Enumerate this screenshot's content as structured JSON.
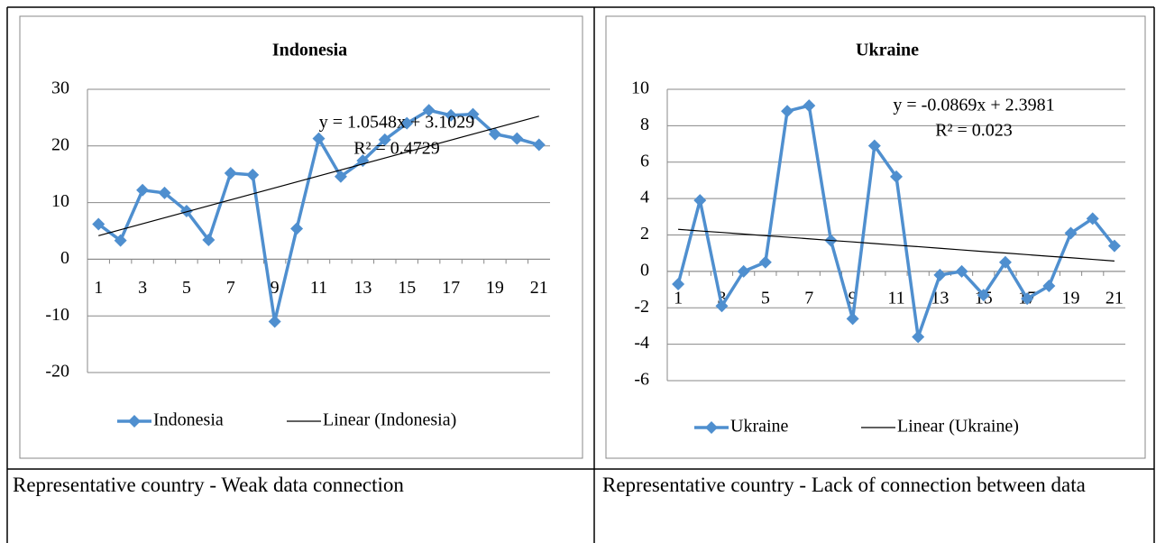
{
  "chart_data": [
    {
      "type": "line",
      "title": "Indonesia",
      "categories": [
        1,
        null,
        3,
        null,
        5,
        null,
        7,
        null,
        9,
        null,
        11,
        null,
        13,
        null,
        15,
        null,
        17,
        null,
        19,
        null,
        21
      ],
      "series": [
        {
          "name": "Indonesia",
          "color": "#4f8fcf",
          "marker": "diamond",
          "values": [
            6.2,
            3.3,
            12.2,
            11.7,
            8.5,
            3.4,
            15.2,
            14.9,
            -11,
            5.4,
            21.3,
            14.6,
            17.4,
            21.1,
            24,
            26.3,
            25.4,
            25.6,
            22.1,
            21.3,
            20.2
          ]
        },
        {
          "name": "Linear (Indonesia)",
          "color": "#000000",
          "marker": "none",
          "values": [
            4.16,
            5.21,
            6.27,
            7.32,
            8.38,
            9.43,
            10.49,
            11.54,
            12.6,
            13.65,
            14.71,
            15.76,
            16.82,
            17.87,
            18.92,
            19.98,
            21.03,
            22.09,
            23.14,
            24.2,
            25.25
          ]
        }
      ],
      "annotations": [
        "y = 1.0548x + 3.1029",
        "R² = 0.4729"
      ],
      "ylim": [
        -20,
        30
      ],
      "yticks": [
        -20,
        -10,
        0,
        10,
        20,
        30
      ],
      "grid": true,
      "legend": "bottom"
    },
    {
      "type": "line",
      "title": "Ukraine",
      "categories": [
        1,
        null,
        3,
        null,
        5,
        null,
        7,
        null,
        9,
        null,
        11,
        null,
        13,
        null,
        15,
        null,
        17,
        null,
        19,
        null,
        21
      ],
      "series": [
        {
          "name": "Ukraine",
          "color": "#4f8fcf",
          "marker": "diamond",
          "values": [
            -0.7,
            3.9,
            -1.9,
            0,
            0.5,
            8.8,
            9.1,
            1.7,
            -2.6,
            6.9,
            5.2,
            -3.6,
            -0.2,
            0,
            -1.3,
            0.5,
            -1.5,
            -0.8,
            2.1,
            2.9,
            1.4
          ]
        },
        {
          "name": "Linear (Ukraine)",
          "color": "#000000",
          "marker": "none",
          "values": [
            2.31,
            2.22,
            2.14,
            2.05,
            1.96,
            1.88,
            1.79,
            1.7,
            1.62,
            1.53,
            1.44,
            1.36,
            1.27,
            1.18,
            1.09,
            1.01,
            0.92,
            0.83,
            0.75,
            0.66,
            0.57
          ]
        }
      ],
      "annotations": [
        "y = -0.0869x + 2.3981",
        "R² = 0.023"
      ],
      "ylim": [
        -6,
        10
      ],
      "yticks": [
        -6,
        -4,
        -2,
        0,
        2,
        4,
        6,
        8,
        10
      ],
      "grid": true,
      "legend": "bottom"
    }
  ],
  "captions": [
    "Representative country - Weak data connection",
    "Representative country - Lack of connection between data"
  ]
}
